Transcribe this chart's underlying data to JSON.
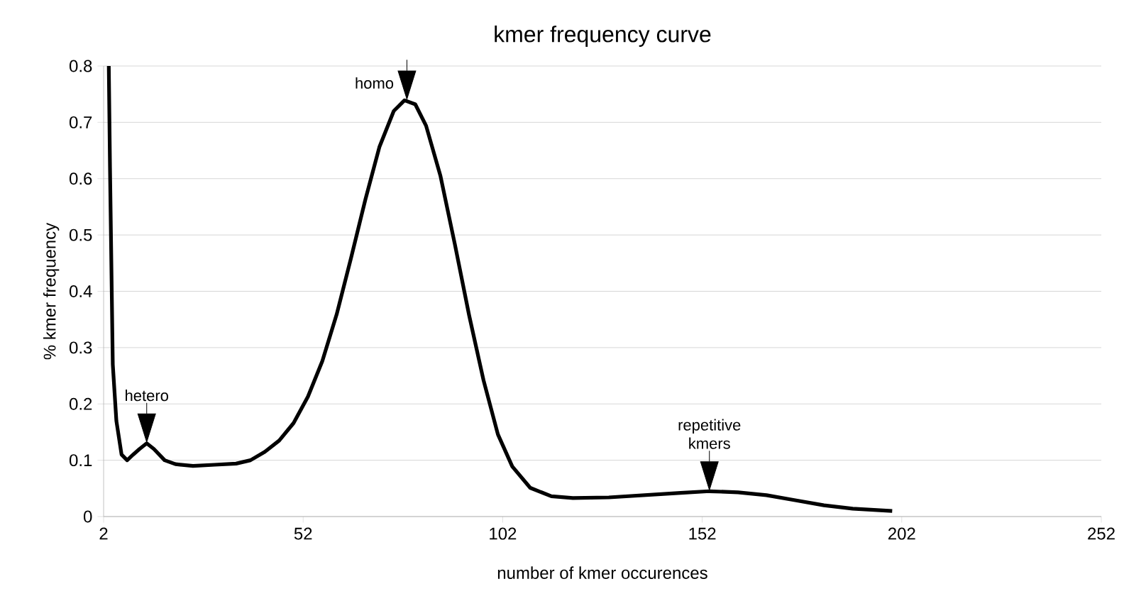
{
  "chart_data": {
    "type": "line",
    "title": "kmer frequency curve",
    "xlabel": "number of kmer occurences",
    "ylabel": "% kmer frequency",
    "x": [
      3.3,
      3.6,
      4.3,
      5.2,
      6.5,
      7.9,
      9.4,
      11,
      12.8,
      14.6,
      17.3,
      20,
      24.4,
      29.8,
      35.2,
      38.8,
      42.4,
      46,
      49.6,
      53.2,
      56.8,
      60.4,
      64,
      67.6,
      71.1,
      74.7,
      77.4,
      80.1,
      82.8,
      86.4,
      90,
      93.6,
      97.2,
      100.8,
      104.4,
      108.9,
      114.2,
      119.6,
      128.6,
      137.6,
      146.6,
      153.8,
      161,
      168.1,
      175.3,
      182.5,
      189.7,
      199.6
    ],
    "series": [
      {
        "color": "#000000",
        "values": [
          0.8,
          0.62,
          0.27,
          0.17,
          0.11,
          0.1,
          0.11,
          0.12,
          0.13,
          0.12,
          0.1,
          0.093,
          0.09,
          0.092,
          0.094,
          0.1,
          0.115,
          0.135,
          0.166,
          0.213,
          0.276,
          0.359,
          0.459,
          0.563,
          0.656,
          0.72,
          0.739,
          0.732,
          0.694,
          0.605,
          0.484,
          0.357,
          0.242,
          0.146,
          0.089,
          0.051,
          0.036,
          0.033,
          0.034,
          0.038,
          0.042,
          0.045,
          0.043,
          0.038,
          0.029,
          0.02,
          0.014,
          0.01
        ]
      }
    ],
    "xlim": [
      2,
      252
    ],
    "xticks": [
      2,
      52,
      102,
      152,
      202,
      252
    ],
    "ylim": [
      0,
      0.8
    ],
    "yticks": [
      0,
      0.1,
      0.2,
      0.3,
      0.4,
      0.5,
      0.6,
      0.7,
      0.8
    ],
    "grid": "y",
    "marker": "none",
    "line_style": "solid",
    "annotations": [
      {
        "text": "hetero",
        "x": 12.8,
        "y": 0.13
      },
      {
        "text": "homo",
        "x": 78,
        "y": 0.739
      },
      {
        "text": "repetitive kmers",
        "x": 153.8,
        "y": 0.045
      }
    ]
  }
}
